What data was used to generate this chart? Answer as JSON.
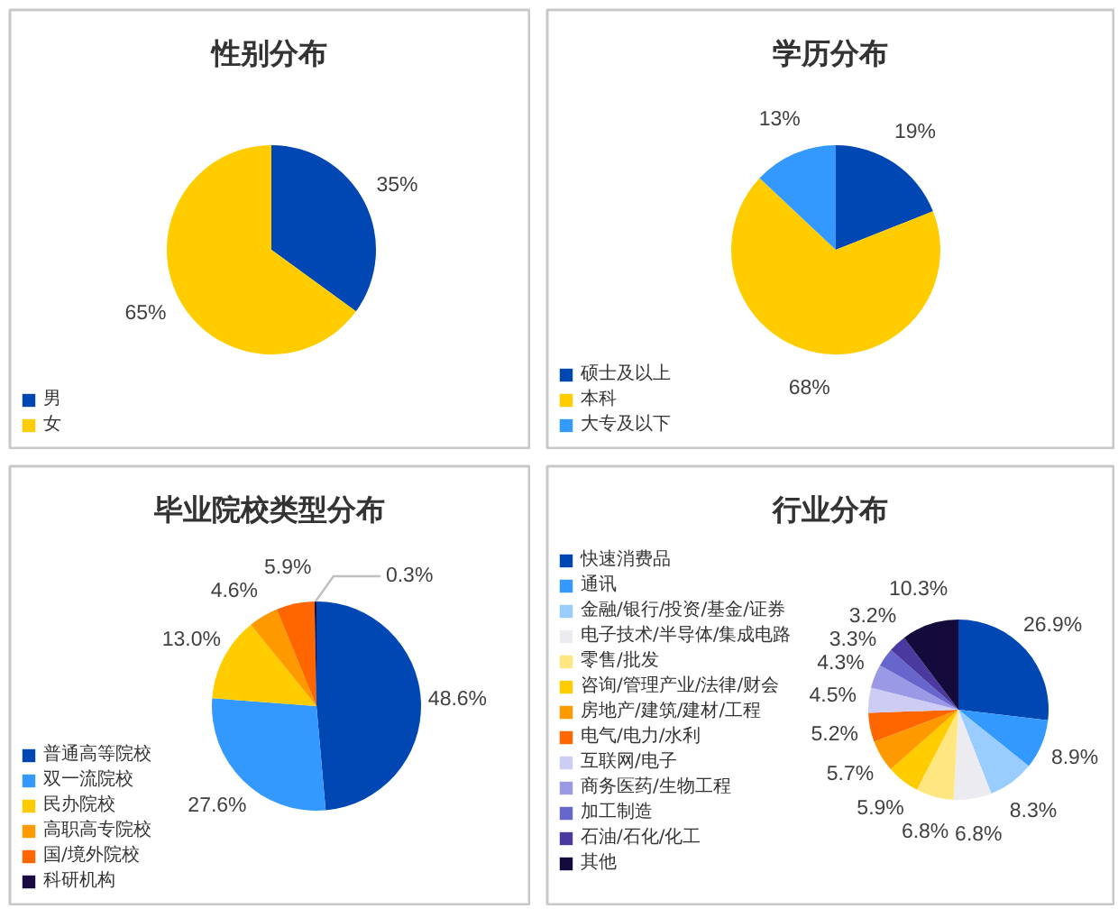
{
  "chart_data": [
    {
      "type": "pie",
      "title": "性别分布",
      "categories": [
        "男",
        "女"
      ],
      "values": [
        35,
        65
      ],
      "colors": [
        "#0047b3",
        "#ffcc00"
      ],
      "value_labels": [
        "35%",
        "65%"
      ],
      "legend": "bottom left"
    },
    {
      "type": "pie",
      "title": "学历分布",
      "categories": [
        "硕士及以上",
        "本科",
        "大专及以下"
      ],
      "values": [
        19,
        68,
        13
      ],
      "colors": [
        "#0047b3",
        "#ffcc00",
        "#3399ff"
      ],
      "value_labels": [
        "19%",
        "68%",
        "13%"
      ],
      "legend": "bottom left"
    },
    {
      "type": "pie",
      "title": "毕业院校类型分布",
      "categories": [
        "普通高等院校",
        "双一流院校",
        "民办院校",
        "高职高专院校",
        "国/境外院校",
        "科研机构"
      ],
      "values": [
        48.6,
        27.6,
        13.0,
        4.6,
        5.9,
        0.3
      ],
      "colors": [
        "#0047b3",
        "#3399ff",
        "#ffcc00",
        "#ff9900",
        "#ff6600",
        "#1a0a40"
      ],
      "value_labels": [
        "48.6%",
        "27.6%",
        "13.0%",
        "4.6%",
        "5.9%",
        "0.3%"
      ],
      "legend": "bottom left"
    },
    {
      "type": "pie",
      "title": "行业分布",
      "categories": [
        "快速消费品",
        "通讯",
        "金融/银行/投资/基金/证券",
        "电子技术/半导体/集成电路",
        "零售/批发",
        "咨询/管理产业/法律/财会",
        "房地产/建筑/建材/工程",
        "电气/电力/水利",
        "互联网/电子",
        "商务医药/生物工程",
        "加工制造",
        "石油/石化/化工",
        "其他"
      ],
      "values": [
        26.9,
        8.9,
        8.3,
        6.8,
        6.8,
        5.9,
        5.7,
        5.2,
        4.5,
        4.3,
        3.3,
        3.2,
        10.3
      ],
      "colors": [
        "#0047b3",
        "#3399ff",
        "#99ccff",
        "#ececf0",
        "#ffe680",
        "#ffcc00",
        "#ff9900",
        "#ff6600",
        "#ccccf5",
        "#9999e6",
        "#6666cc",
        "#4a3aa0",
        "#150a3c"
      ],
      "value_labels": [
        "26.9%",
        "8.9%",
        "8.3%",
        "6.8%",
        "6.8%",
        "5.9%",
        "5.7%",
        "5.2%",
        "4.5%",
        "4.3%",
        "3.3%",
        "3.2%",
        "10.3%"
      ],
      "legend": "left"
    }
  ]
}
